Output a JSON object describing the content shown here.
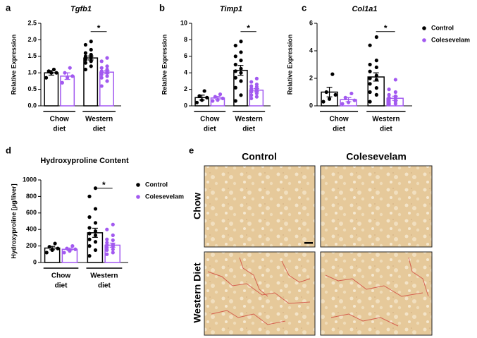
{
  "chart_data": [
    {
      "type": "bar",
      "panel": "a",
      "title": "Tgfb1",
      "ylabel": "Relative Expression",
      "groups": [
        [
          "Chow",
          "diet"
        ],
        [
          "Western",
          "diet"
        ]
      ],
      "ylim": [
        0,
        2.5
      ],
      "yticks": [
        {
          "value": 0,
          "label": "0.0"
        },
        0.5,
        {
          "value": 1,
          "label": "1.0"
        },
        1.5,
        {
          "value": 2,
          "label": "2.0"
        },
        2.5
      ],
      "significance": "*",
      "legend": false,
      "series": [
        {
          "name": "Control",
          "color": "#000000",
          "values": [
            1.0,
            1.45
          ],
          "errors": [
            0.07,
            0.06
          ],
          "points": [
            [
              0.85,
              1.0,
              1.0,
              1.05,
              1.1
            ],
            [
              1.1,
              1.2,
              1.3,
              1.35,
              1.4,
              1.45,
              1.45,
              1.5,
              1.5,
              1.55,
              1.6,
              1.7,
              1.85,
              1.95
            ]
          ]
        },
        {
          "name": "Colesevelam",
          "color": "#a259f0",
          "values": [
            0.9,
            1.02
          ],
          "errors": [
            0.1,
            0.05
          ],
          "points": [
            [
              0.7,
              0.85,
              0.9,
              1.0,
              1.15
            ],
            [
              0.6,
              0.75,
              0.85,
              0.9,
              0.95,
              1.0,
              1.0,
              1.05,
              1.05,
              1.1,
              1.15,
              1.2,
              1.35,
              1.45
            ]
          ]
        }
      ]
    },
    {
      "type": "bar",
      "panel": "b",
      "title": "Timp1",
      "ylabel": "Relative Expression",
      "groups": [
        [
          "Chow",
          "diet"
        ],
        [
          "Western",
          "diet"
        ]
      ],
      "ylim": [
        0,
        10
      ],
      "yticks": [
        0,
        2,
        4,
        6,
        8,
        10
      ],
      "significance": "*",
      "legend": false,
      "series": [
        {
          "name": "Control",
          "color": "#000000",
          "values": [
            1.0,
            4.3
          ],
          "errors": [
            0.3,
            0.6
          ],
          "points": [
            [
              0.4,
              0.7,
              1.0,
              1.2,
              1.8
            ],
            [
              0.6,
              1.3,
              2.2,
              3.0,
              3.4,
              4.0,
              4.2,
              4.5,
              5.0,
              5.5,
              6.0,
              6.5,
              7.3,
              7.8
            ]
          ]
        },
        {
          "name": "Colesevelam",
          "color": "#a259f0",
          "values": [
            0.95,
            1.9
          ],
          "errors": [
            0.2,
            0.2
          ],
          "points": [
            [
              0.6,
              0.7,
              0.9,
              1.1,
              1.4
            ],
            [
              0.9,
              1.1,
              1.3,
              1.5,
              1.7,
              1.8,
              1.9,
              2.0,
              2.1,
              2.3,
              2.4,
              2.6,
              2.9,
              3.3
            ]
          ]
        }
      ]
    },
    {
      "type": "bar",
      "panel": "c",
      "title": "Col1a1",
      "ylabel": "Relative Expression",
      "groups": [
        [
          "Chow",
          "diet"
        ],
        [
          "Western",
          "diet"
        ]
      ],
      "ylim": [
        0,
        6
      ],
      "yticks": [
        0,
        2,
        4,
        6
      ],
      "significance": "*",
      "legend": true,
      "series": [
        {
          "name": "Control",
          "color": "#000000",
          "values": [
            1.0,
            2.1
          ],
          "errors": [
            0.35,
            0.3
          ],
          "points": [
            [
              0.3,
              0.5,
              0.8,
              1.0,
              2.3
            ],
            [
              0.3,
              0.8,
              1.0,
              1.3,
              1.6,
              1.9,
              2.0,
              2.2,
              2.5,
              2.8,
              3.0,
              3.3,
              4.4,
              5.0
            ]
          ]
        },
        {
          "name": "Colesevelam",
          "color": "#a259f0",
          "values": [
            0.45,
            0.55
          ],
          "errors": [
            0.15,
            0.15
          ],
          "points": [
            [
              0.15,
              0.25,
              0.4,
              0.6,
              0.9
            ],
            [
              0.1,
              0.15,
              0.2,
              0.3,
              0.35,
              0.4,
              0.5,
              0.55,
              0.6,
              0.7,
              0.8,
              1.0,
              1.2,
              1.9
            ]
          ]
        }
      ]
    },
    {
      "type": "bar",
      "panel": "d",
      "title": "Hydroxyproline Content",
      "ylabel": "Hydroxyproline [µg/liver]",
      "groups": [
        [
          "Chow",
          "diet"
        ],
        [
          "Western",
          "diet"
        ]
      ],
      "ylim": [
        0,
        1000
      ],
      "yticks": [
        0,
        200,
        400,
        600,
        800,
        1000
      ],
      "significance": "*",
      "legend": true,
      "series": [
        {
          "name": "Control",
          "color": "#000000",
          "values": [
            175,
            360
          ],
          "errors": [
            20,
            55
          ],
          "points": [
            [
              120,
              150,
              170,
              190,
              230
            ],
            [
              80,
              150,
              200,
              250,
              280,
              330,
              350,
              380,
              420,
              480,
              550,
              650,
              800,
              900
            ]
          ]
        },
        {
          "name": "Colesevelam",
          "color": "#a259f0",
          "values": [
            160,
            210
          ],
          "errors": [
            15,
            25
          ],
          "points": [
            [
              120,
              140,
              160,
              170,
              200
            ],
            [
              100,
              120,
              150,
              160,
              180,
              200,
              210,
              220,
              240,
              270,
              280,
              330,
              400,
              460
            ]
          ]
        }
      ]
    }
  ],
  "panel_e": {
    "panel": "e",
    "columns": [
      "Control",
      "Colesevelam"
    ],
    "rows": [
      "Chow",
      "Western Diet"
    ]
  }
}
